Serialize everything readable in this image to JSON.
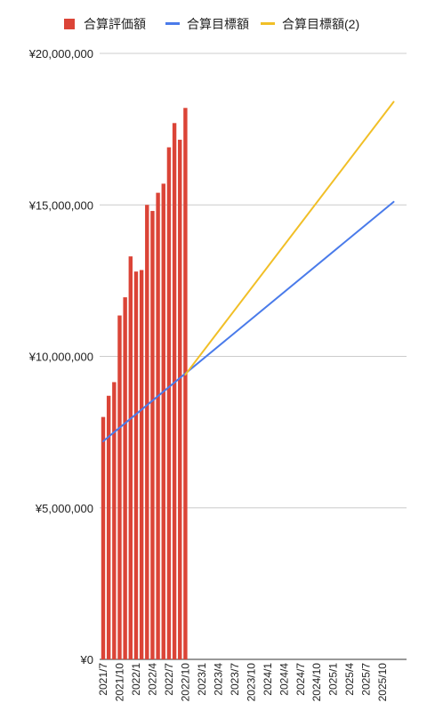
{
  "chart_data": {
    "type": "bar+line",
    "legend": {
      "position": "top",
      "entries": [
        {
          "name": "合算評価額",
          "color": "#db4437",
          "kind": "bar"
        },
        {
          "name": "合算目標額",
          "color": "#4a7bea",
          "kind": "line"
        },
        {
          "name": "合算目標額(2)",
          "color": "#f1bf27",
          "kind": "line"
        }
      ]
    },
    "y_axis": {
      "min": 0,
      "max": 20000000,
      "ticks": [
        {
          "value": 0,
          "label": "¥0"
        },
        {
          "value": 5000000,
          "label": "¥5,000,000"
        },
        {
          "value": 10000000,
          "label": "¥10,000,000"
        },
        {
          "value": 15000000,
          "label": "¥15,000,000"
        },
        {
          "value": 20000000,
          "label": "¥20,000,000"
        }
      ],
      "grid": true
    },
    "x_axis": {
      "months": [
        "2021/7",
        "2021/8",
        "2021/9",
        "2021/10",
        "2021/11",
        "2021/12",
        "2022/1",
        "2022/2",
        "2022/3",
        "2022/4",
        "2022/5",
        "2022/6",
        "2022/7",
        "2022/8",
        "2022/9",
        "2022/10",
        "2022/11",
        "2022/12",
        "2023/1",
        "2023/2",
        "2023/3",
        "2023/4",
        "2023/5",
        "2023/6",
        "2023/7",
        "2023/8",
        "2023/9",
        "2023/10",
        "2023/11",
        "2023/12",
        "2024/1",
        "2024/2",
        "2024/3",
        "2024/4",
        "2024/5",
        "2024/6",
        "2024/7",
        "2024/8",
        "2024/9",
        "2024/10",
        "2024/11",
        "2024/12",
        "2025/1",
        "2025/2",
        "2025/3",
        "2025/4",
        "2025/5",
        "2025/6",
        "2025/7",
        "2025/8",
        "2025/9",
        "2025/10",
        "2025/11",
        "2025/12"
      ],
      "tick_labels": [
        "2021/7",
        "2021/10",
        "2022/1",
        "2022/4",
        "2022/7",
        "2022/10",
        "2023/1",
        "2023/4",
        "2023/7",
        "2023/10",
        "2024/1",
        "2024/4",
        "2024/7",
        "2024/10",
        "2025/1",
        "2025/4",
        "2025/7",
        "2025/10"
      ]
    },
    "series": [
      {
        "name": "合算評価額",
        "type": "bar",
        "color": "#db4437",
        "values": [
          8000000,
          8700000,
          9150000,
          11350000,
          11950000,
          13300000,
          12800000,
          12850000,
          15000000,
          14800000,
          15400000,
          15700000,
          16900000,
          17700000,
          17150000,
          18200000
        ]
      },
      {
        "name": "合算目標額",
        "type": "line",
        "color": "#4a7bea",
        "start": {
          "month": "2021/7",
          "value": 7200000
        },
        "end": {
          "month": "2025/12",
          "value": 15100000
        }
      },
      {
        "name": "合算目標額(2)",
        "type": "line",
        "color": "#f1bf27",
        "start": {
          "month": "2022/10",
          "value": 9400000
        },
        "end": {
          "month": "2025/12",
          "value": 18400000
        }
      }
    ]
  }
}
